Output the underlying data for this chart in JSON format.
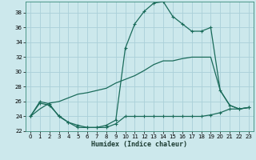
{
  "xlabel": "Humidex (Indice chaleur)",
  "background_color": "#cce8ec",
  "grid_color": "#aad0d8",
  "line_color": "#1a6b5a",
  "xlim": [
    -0.5,
    23.5
  ],
  "ylim": [
    22,
    39.5
  ],
  "xticks": [
    0,
    1,
    2,
    3,
    4,
    5,
    6,
    7,
    8,
    9,
    10,
    11,
    12,
    13,
    14,
    15,
    16,
    17,
    18,
    19,
    20,
    21,
    22,
    23
  ],
  "yticks": [
    22,
    24,
    26,
    28,
    30,
    32,
    34,
    36,
    38
  ],
  "curve1_x": [
    0,
    1,
    2,
    3,
    4,
    5,
    6,
    7,
    8,
    9,
    10,
    11,
    12,
    13,
    14,
    15,
    16,
    17,
    18,
    19,
    20,
    21,
    22,
    23
  ],
  "curve1_y": [
    24,
    26,
    25.7,
    24.0,
    23.2,
    22.8,
    22.5,
    22.5,
    22.8,
    23.5,
    33.2,
    36.5,
    38.2,
    39.3,
    39.5,
    37.5,
    36.5,
    35.5,
    35.5,
    36.0,
    27.5,
    25.5,
    25.0,
    25.2
  ],
  "curve2_x": [
    0,
    1,
    2,
    3,
    4,
    5,
    6,
    7,
    8,
    9,
    10,
    11,
    12,
    13,
    14,
    15,
    16,
    17,
    18,
    19,
    20,
    21,
    22,
    23
  ],
  "curve2_y": [
    24,
    25.8,
    25.5,
    24.1,
    23.2,
    22.5,
    22.5,
    22.5,
    22.5,
    23.0,
    24.0,
    24.0,
    24.0,
    24.0,
    24.0,
    24.0,
    24.0,
    24.0,
    24.0,
    24.2,
    24.5,
    25.0,
    25.0,
    25.2
  ],
  "curve3_x": [
    0,
    1,
    2,
    3,
    4,
    5,
    6,
    7,
    8,
    9,
    10,
    11,
    12,
    13,
    14,
    15,
    16,
    17,
    18,
    19,
    20,
    21,
    22,
    23
  ],
  "curve3_y": [
    24,
    25,
    25.8,
    26.0,
    26.5,
    27.0,
    27.2,
    27.5,
    27.8,
    28.5,
    29.0,
    29.5,
    30.2,
    31.0,
    31.5,
    31.5,
    31.8,
    32.0,
    32.0,
    32.0,
    27.5,
    25.5,
    25.0,
    25.2
  ]
}
